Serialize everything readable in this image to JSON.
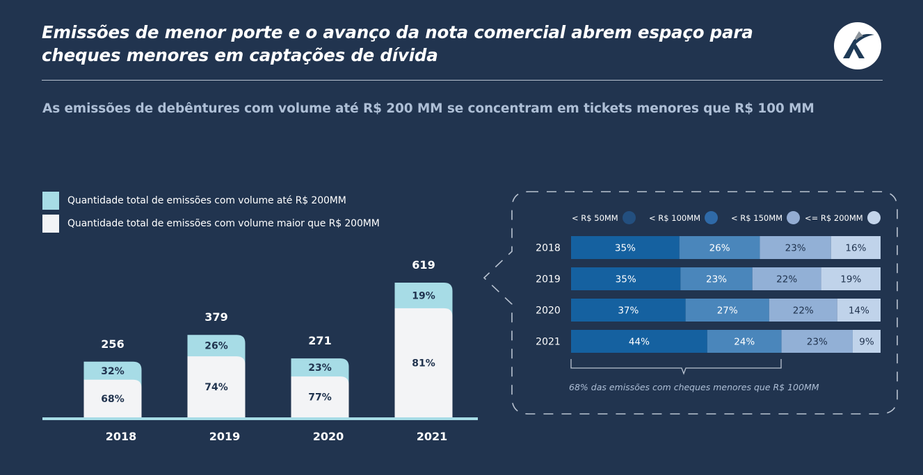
{
  "header": {
    "title_line1": "Emissões de menor porte e o avanço da nota comercial abrem espaço para",
    "title_line2": "cheques menores em captações de dívida",
    "logo": "k-logo-icon"
  },
  "subtitle": "As emissões de debêntures com volume até R$ 200 MM se concentram em tickets menores que R$ 100 MM",
  "colors": {
    "background": "#21344f",
    "light_cyan": "#a7dce6",
    "off_white": "#f3f4f6",
    "dark_text": "#21344f",
    "seg1": "#1561a0",
    "seg2": "#4a86bb",
    "seg3": "#92b0d6",
    "seg4": "#c0d3ea",
    "dashed": "#b9c3d1"
  },
  "chart_data": [
    {
      "type": "bar",
      "stacked": true,
      "title": "",
      "categories": [
        "2018",
        "2019",
        "2020",
        "2021"
      ],
      "totals": [
        256,
        379,
        271,
        619
      ],
      "legend_position": "top-left",
      "series": [
        {
          "name": "Quantidade total de emissões com volume até R$ 200MM",
          "values": [
            32,
            26,
            23,
            19
          ],
          "unit": "%"
        },
        {
          "name": "Quantidade total de emissões com volume maior que R$ 200MM",
          "values": [
            68,
            74,
            77,
            81
          ],
          "unit": "%"
        }
      ],
      "labels": {
        "top": [
          "32%",
          "26%",
          "23%",
          "19%"
        ],
        "bottom": [
          "68%",
          "74%",
          "77%",
          "81%"
        ]
      }
    },
    {
      "type": "bar",
      "orientation": "horizontal",
      "stacked": true,
      "normalized": true,
      "categories": [
        "2018",
        "2019",
        "2020",
        "2021"
      ],
      "legend_position": "top",
      "series": [
        {
          "name": "< R$ 50MM",
          "values": [
            35,
            35,
            37,
            44
          ]
        },
        {
          "name": "< R$ 100MM",
          "values": [
            26,
            23,
            27,
            24
          ]
        },
        {
          "name": "< R$ 150MM",
          "values": [
            23,
            22,
            22,
            23
          ]
        },
        {
          "name": "<= R$ 200MM",
          "values": [
            16,
            19,
            14,
            9
          ]
        }
      ],
      "annotation": "68% das emissões com cheques menores que R$ 100MM"
    }
  ]
}
